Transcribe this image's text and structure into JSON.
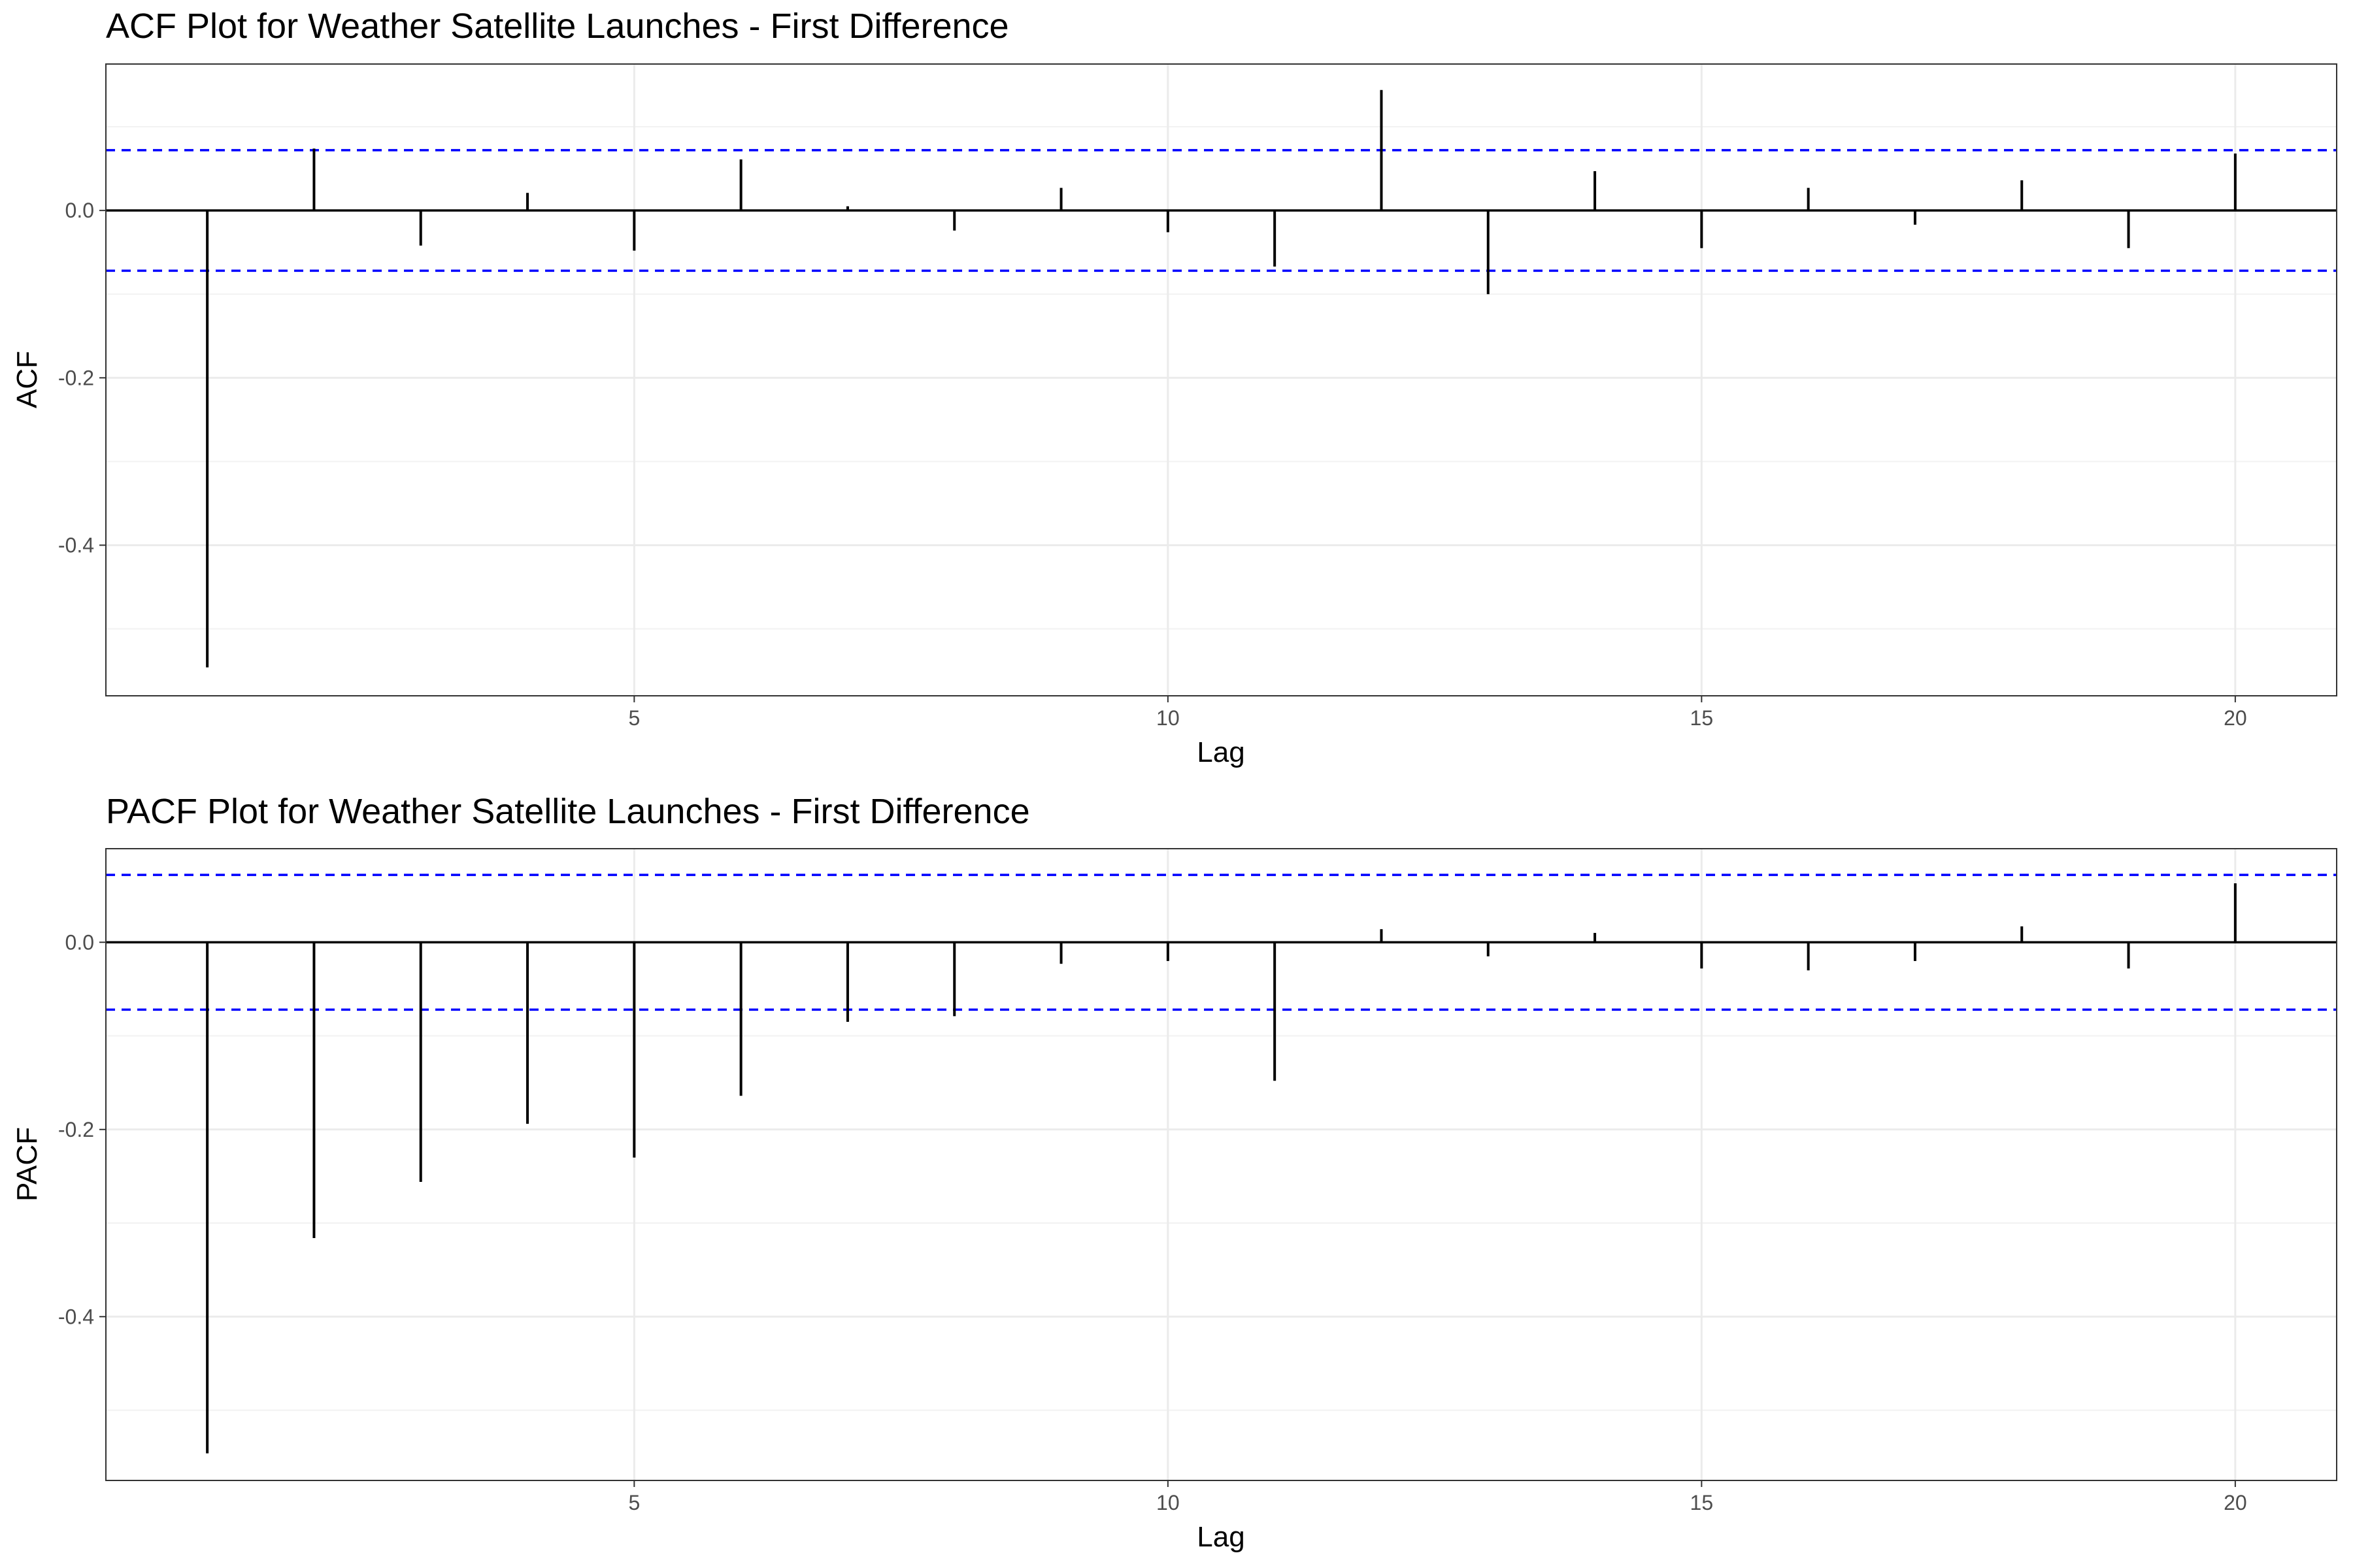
{
  "chart_data": [
    {
      "type": "bar",
      "title": "ACF Plot for Weather Satellite Launches - First Difference",
      "xlabel": "Lag",
      "ylabel": "ACF",
      "xlim": [
        0.05,
        20.95
      ],
      "ylim": [
        -0.58,
        0.175
      ],
      "x_ticks": [
        5,
        10,
        15,
        20
      ],
      "x_tick_labels": [
        "5",
        "10",
        "15",
        "20"
      ],
      "y_ticks": [
        -0.4,
        -0.2,
        0.0
      ],
      "y_tick_labels": [
        "-0.4",
        "-0.2",
        "0.0"
      ],
      "y_minor_ticks": [
        -0.5,
        -0.3,
        -0.1,
        0.1
      ],
      "confidence_band": [
        -0.072,
        0.072
      ],
      "confidence_color": "#0000ff",
      "bar_color": "#000000",
      "grid": true,
      "lags": [
        1,
        2,
        3,
        4,
        5,
        6,
        7,
        8,
        9,
        10,
        11,
        12,
        13,
        14,
        15,
        16,
        17,
        18,
        19,
        20
      ],
      "values": [
        -0.546,
        0.074,
        -0.042,
        0.021,
        -0.048,
        0.061,
        0.005,
        -0.024,
        0.027,
        -0.026,
        -0.067,
        0.144,
        -0.1,
        0.047,
        -0.045,
        0.027,
        -0.017,
        0.036,
        -0.045,
        0.068
      ]
    },
    {
      "type": "bar",
      "title": "PACF Plot for Weather Satellite Launches - First Difference",
      "xlabel": "Lag",
      "ylabel": "PACF",
      "xlim": [
        0.05,
        20.95
      ],
      "ylim": [
        -0.575,
        0.1
      ],
      "x_ticks": [
        5,
        10,
        15,
        20
      ],
      "x_tick_labels": [
        "5",
        "10",
        "15",
        "20"
      ],
      "y_ticks": [
        -0.4,
        -0.2,
        0.0
      ],
      "y_tick_labels": [
        "-0.4",
        "-0.2",
        "0.0"
      ],
      "y_minor_ticks": [
        -0.5,
        -0.3,
        -0.1
      ],
      "confidence_band": [
        -0.072,
        0.072
      ],
      "confidence_color": "#0000ff",
      "bar_color": "#000000",
      "grid": true,
      "lags": [
        1,
        2,
        3,
        4,
        5,
        6,
        7,
        8,
        9,
        10,
        11,
        12,
        13,
        14,
        15,
        16,
        17,
        18,
        19,
        20
      ],
      "values": [
        -0.546,
        -0.316,
        -0.256,
        -0.194,
        -0.23,
        -0.164,
        -0.085,
        -0.079,
        -0.023,
        -0.02,
        -0.148,
        0.014,
        -0.015,
        0.01,
        -0.028,
        -0.03,
        -0.02,
        0.017,
        -0.028,
        0.063
      ]
    }
  ]
}
